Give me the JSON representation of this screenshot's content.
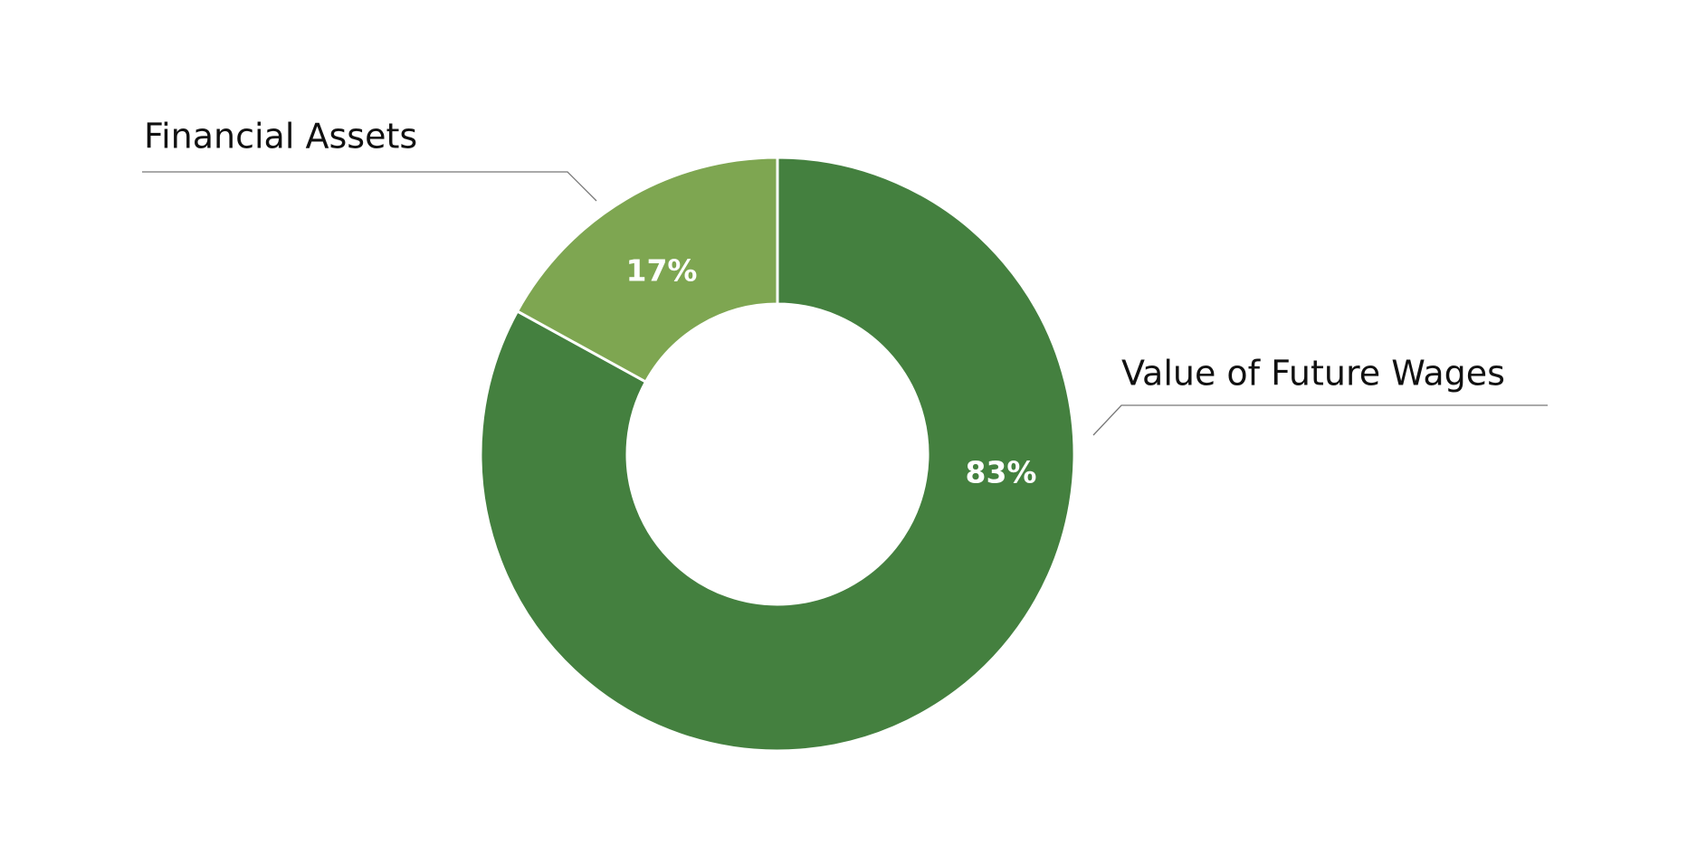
{
  "chart_data": {
    "type": "donut",
    "categories": [
      "Value of Future Wages",
      "Financial Assets"
    ],
    "values": [
      83,
      17
    ],
    "value_labels": [
      "83%",
      "17%"
    ],
    "colors": [
      "#44803f",
      "#7ea651"
    ]
  }
}
